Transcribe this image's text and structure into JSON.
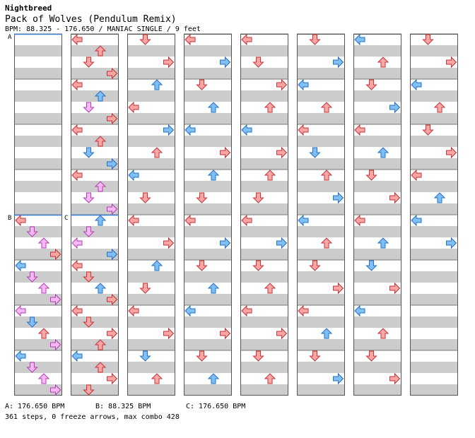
{
  "header": {
    "artist": "Nightbreed",
    "song": "Pack of Wolves (Pendulum Remix)",
    "info": "BPM: 88.325 - 176.650 / MANIAC SINGLE / 9 feet"
  },
  "section_markers": [
    {
      "label": "A",
      "column": 1,
      "measure": 0
    },
    {
      "label": "B",
      "column": 1,
      "measure": 4
    },
    {
      "label": "C",
      "column": 2,
      "measure": 4
    }
  ],
  "legend": {
    "a": "A: 176.650 BPM",
    "b": "B: 88.325 BPM",
    "c": "C: 176.650 BPM"
  },
  "footer": {
    "stats": "361 steps, 0 freeze arrows, max combo 428"
  },
  "colors": {
    "arrow_red": "#f6a6a6",
    "arrow_red_stroke": "#c83232",
    "arrow_blue": "#7fbff5",
    "arrow_blue_stroke": "#2a6fc0",
    "arrow_pink": "#f4b8f4",
    "arrow_pink_stroke": "#b040b0",
    "stripe_gray": "#cccccc",
    "stripe_white": "#ffffff",
    "section_line": "#3a7bd5",
    "frame": "#555555"
  },
  "chart_data": {
    "type": "table",
    "description_columns": "8 chart columns, each 8 measures of 4 beats; lanes L D U R",
    "notes": [
      [
        1,
        0,
        0,
        "L",
        "r"
      ],
      [
        1,
        0,
        1,
        "U",
        "r"
      ],
      [
        1,
        0,
        2,
        "D",
        "r"
      ],
      [
        1,
        0,
        3,
        "R",
        "r"
      ],
      [
        1,
        1,
        0,
        "L",
        "r"
      ],
      [
        1,
        1,
        1,
        "U",
        "b"
      ],
      [
        1,
        1,
        2,
        "D",
        "p"
      ],
      [
        1,
        1,
        3,
        "R",
        "r"
      ],
      [
        1,
        2,
        0,
        "L",
        "r"
      ],
      [
        1,
        2,
        1,
        "U",
        "r"
      ],
      [
        1,
        2,
        2,
        "D",
        "b"
      ],
      [
        1,
        2,
        3,
        "R",
        "b"
      ],
      [
        1,
        3,
        0,
        "L",
        "r"
      ],
      [
        1,
        3,
        1,
        "U",
        "p"
      ],
      [
        1,
        3,
        2,
        "D",
        "p"
      ],
      [
        1,
        3,
        3,
        "R",
        "p"
      ],
      [
        1,
        4,
        0,
        "U",
        "b"
      ],
      [
        1,
        4,
        1,
        "D",
        "p"
      ],
      [
        1,
        4,
        2,
        "L",
        "p"
      ],
      [
        1,
        4,
        3,
        "R",
        "b"
      ],
      [
        1,
        5,
        0,
        "L",
        "r"
      ],
      [
        1,
        5,
        1,
        "D",
        "r"
      ],
      [
        1,
        5,
        2,
        "U",
        "b"
      ],
      [
        1,
        5,
        3,
        "R",
        "r"
      ],
      [
        1,
        6,
        0,
        "L",
        "r"
      ],
      [
        1,
        6,
        1,
        "D",
        "r"
      ],
      [
        1,
        6,
        2,
        "R",
        "r"
      ],
      [
        1,
        6,
        3,
        "U",
        "r"
      ],
      [
        1,
        7,
        0,
        "L",
        "b"
      ],
      [
        1,
        7,
        1,
        "U",
        "r"
      ],
      [
        1,
        7,
        2,
        "R",
        "r"
      ],
      [
        1,
        7,
        3,
        "D",
        "r"
      ],
      [
        0,
        4,
        0,
        "L",
        "r"
      ],
      [
        0,
        4,
        1,
        "D",
        "p"
      ],
      [
        0,
        4,
        2,
        "U",
        "p"
      ],
      [
        0,
        4,
        3,
        "R",
        "r"
      ],
      [
        0,
        5,
        0,
        "L",
        "b"
      ],
      [
        0,
        5,
        1,
        "D",
        "p"
      ],
      [
        0,
        5,
        2,
        "U",
        "p"
      ],
      [
        0,
        5,
        3,
        "R",
        "p"
      ],
      [
        0,
        6,
        0,
        "L",
        "p"
      ],
      [
        0,
        6,
        1,
        "D",
        "b"
      ],
      [
        0,
        6,
        2,
        "U",
        "r"
      ],
      [
        0,
        6,
        3,
        "R",
        "p"
      ],
      [
        0,
        7,
        0,
        "L",
        "b"
      ],
      [
        0,
        7,
        1,
        "D",
        "p"
      ],
      [
        0,
        7,
        2,
        "U",
        "p"
      ],
      [
        0,
        7,
        3,
        "R",
        "p"
      ],
      [
        2,
        0,
        0,
        "D",
        "r"
      ],
      [
        2,
        0,
        2,
        "R",
        "r"
      ],
      [
        2,
        1,
        0,
        "U",
        "b"
      ],
      [
        2,
        1,
        2,
        "L",
        "r"
      ],
      [
        2,
        2,
        0,
        "R",
        "b"
      ],
      [
        2,
        2,
        2,
        "U",
        "r"
      ],
      [
        2,
        3,
        0,
        "L",
        "b"
      ],
      [
        2,
        3,
        2,
        "D",
        "r"
      ],
      [
        2,
        4,
        0,
        "L",
        "r"
      ],
      [
        2,
        4,
        2,
        "R",
        "r"
      ],
      [
        2,
        5,
        0,
        "U",
        "b"
      ],
      [
        2,
        5,
        2,
        "D",
        "r"
      ],
      [
        2,
        6,
        0,
        "L",
        "r"
      ],
      [
        2,
        6,
        2,
        "R",
        "r"
      ],
      [
        2,
        7,
        0,
        "D",
        "b"
      ],
      [
        2,
        7,
        2,
        "U",
        "r"
      ],
      [
        3,
        0,
        0,
        "L",
        "r"
      ],
      [
        3,
        0,
        2,
        "R",
        "b"
      ],
      [
        3,
        1,
        0,
        "D",
        "r"
      ],
      [
        3,
        1,
        2,
        "U",
        "b"
      ],
      [
        3,
        2,
        0,
        "L",
        "b"
      ],
      [
        3,
        2,
        2,
        "R",
        "r"
      ],
      [
        3,
        3,
        0,
        "U",
        "b"
      ],
      [
        3,
        3,
        2,
        "D",
        "r"
      ],
      [
        3,
        4,
        0,
        "L",
        "r"
      ],
      [
        3,
        4,
        2,
        "R",
        "b"
      ],
      [
        3,
        5,
        0,
        "D",
        "r"
      ],
      [
        3,
        5,
        2,
        "U",
        "b"
      ],
      [
        3,
        6,
        0,
        "L",
        "b"
      ],
      [
        3,
        6,
        2,
        "R",
        "r"
      ],
      [
        3,
        7,
        0,
        "D",
        "r"
      ],
      [
        3,
        7,
        2,
        "U",
        "b"
      ],
      [
        4,
        0,
        0,
        "L",
        "r"
      ],
      [
        4,
        0,
        2,
        "D",
        "r"
      ],
      [
        4,
        1,
        0,
        "R",
        "r"
      ],
      [
        4,
        1,
        2,
        "U",
        "r"
      ],
      [
        4,
        2,
        0,
        "L",
        "b"
      ],
      [
        4,
        2,
        2,
        "R",
        "r"
      ],
      [
        4,
        3,
        0,
        "U",
        "r"
      ],
      [
        4,
        3,
        2,
        "D",
        "r"
      ],
      [
        4,
        4,
        0,
        "L",
        "r"
      ],
      [
        4,
        4,
        2,
        "R",
        "b"
      ],
      [
        4,
        5,
        0,
        "D",
        "r"
      ],
      [
        4,
        5,
        2,
        "U",
        "r"
      ],
      [
        4,
        6,
        0,
        "L",
        "r"
      ],
      [
        4,
        6,
        2,
        "R",
        "r"
      ],
      [
        4,
        7,
        0,
        "D",
        "r"
      ],
      [
        4,
        7,
        2,
        "U",
        "r"
      ],
      [
        5,
        0,
        0,
        "D",
        "r"
      ],
      [
        5,
        0,
        2,
        "R",
        "b"
      ],
      [
        5,
        1,
        0,
        "L",
        "b"
      ],
      [
        5,
        1,
        2,
        "U",
        "r"
      ],
      [
        5,
        2,
        0,
        "L",
        "r"
      ],
      [
        5,
        2,
        2,
        "D",
        "b"
      ],
      [
        5,
        3,
        0,
        "U",
        "r"
      ],
      [
        5,
        3,
        2,
        "R",
        "b"
      ],
      [
        5,
        4,
        0,
        "L",
        "b"
      ],
      [
        5,
        4,
        2,
        "U",
        "r"
      ],
      [
        5,
        5,
        0,
        "D",
        "r"
      ],
      [
        5,
        5,
        2,
        "R",
        "r"
      ],
      [
        5,
        6,
        0,
        "L",
        "r"
      ],
      [
        5,
        6,
        2,
        "U",
        "b"
      ],
      [
        5,
        7,
        0,
        "D",
        "r"
      ],
      [
        5,
        7,
        2,
        "R",
        "b"
      ],
      [
        6,
        0,
        0,
        "L",
        "b"
      ],
      [
        6,
        0,
        2,
        "U",
        "r"
      ],
      [
        6,
        1,
        0,
        "D",
        "r"
      ],
      [
        6,
        1,
        2,
        "R",
        "b"
      ],
      [
        6,
        2,
        0,
        "L",
        "r"
      ],
      [
        6,
        2,
        2,
        "U",
        "b"
      ],
      [
        6,
        3,
        0,
        "D",
        "r"
      ],
      [
        6,
        3,
        2,
        "R",
        "r"
      ],
      [
        6,
        4,
        0,
        "L",
        "r"
      ],
      [
        6,
        4,
        2,
        "U",
        "b"
      ],
      [
        6,
        5,
        0,
        "D",
        "b"
      ],
      [
        6,
        5,
        2,
        "R",
        "r"
      ],
      [
        6,
        6,
        0,
        "L",
        "b"
      ],
      [
        6,
        6,
        2,
        "U",
        "r"
      ],
      [
        6,
        7,
        0,
        "D",
        "r"
      ],
      [
        6,
        7,
        2,
        "R",
        "r"
      ],
      [
        7,
        0,
        0,
        "D",
        "r"
      ],
      [
        7,
        0,
        2,
        "R",
        "r"
      ],
      [
        7,
        1,
        0,
        "L",
        "b"
      ],
      [
        7,
        1,
        2,
        "U",
        "r"
      ],
      [
        7,
        2,
        0,
        "D",
        "r"
      ],
      [
        7,
        2,
        2,
        "R",
        "r"
      ],
      [
        7,
        3,
        0,
        "L",
        "r"
      ],
      [
        7,
        3,
        2,
        "U",
        "b"
      ],
      [
        7,
        4,
        0,
        "L",
        "b"
      ],
      [
        7,
        4,
        2,
        "R",
        "b"
      ]
    ]
  }
}
